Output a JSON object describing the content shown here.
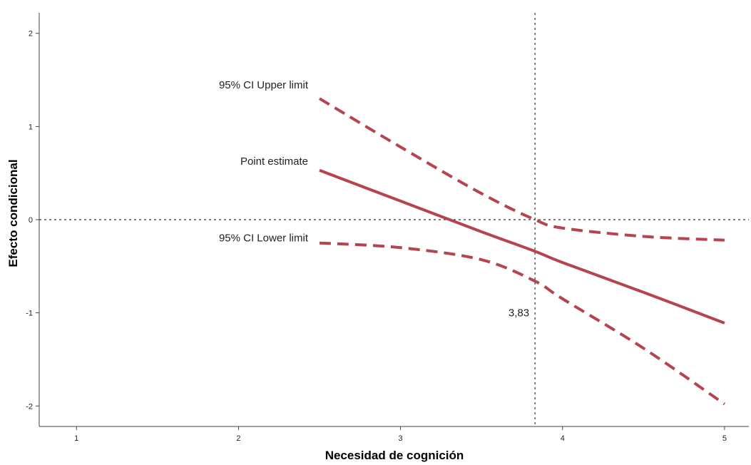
{
  "chart_data": {
    "type": "line",
    "title": "",
    "xlabel": "Necesidad de cognición",
    "ylabel": "Efecto condicional",
    "xlim": [
      0.77,
      5.15
    ],
    "ylim": [
      -2.22,
      2.22
    ],
    "x_ticks": [
      1,
      2,
      3,
      4,
      5
    ],
    "y_ticks": [
      2,
      1,
      0,
      -1,
      -2
    ],
    "x_tick_labels": [
      "1",
      "2",
      "3",
      "4",
      "5"
    ],
    "y_tick_labels": [
      "2",
      "1",
      "0",
      "-1",
      "-2"
    ],
    "grid": false,
    "color": "#b5444e",
    "series": [
      {
        "name": "95% CI Upper limit",
        "style": "dashed",
        "x": [
          2.5,
          3.0,
          3.5,
          3.83,
          4.0,
          4.5,
          5.0
        ],
        "y": [
          1.3,
          0.78,
          0.28,
          0.0,
          -0.09,
          -0.18,
          -0.22
        ]
      },
      {
        "name": "Point estimate",
        "style": "solid",
        "x": [
          2.5,
          3.0,
          3.5,
          3.83,
          4.0,
          4.5,
          5.0
        ],
        "y": [
          0.53,
          0.2,
          -0.13,
          -0.34,
          -0.46,
          -0.78,
          -1.11
        ]
      },
      {
        "name": "95% CI Lower limit",
        "style": "dashed",
        "x": [
          2.5,
          3.0,
          3.5,
          3.83,
          4.0,
          4.5,
          5.0
        ],
        "y": [
          -0.25,
          -0.3,
          -0.43,
          -0.66,
          -0.85,
          -1.38,
          -1.98
        ]
      }
    ],
    "reference_lines": {
      "horizontal_y": 0,
      "vertical_x": 3.83,
      "vertical_label": "3,83"
    }
  }
}
